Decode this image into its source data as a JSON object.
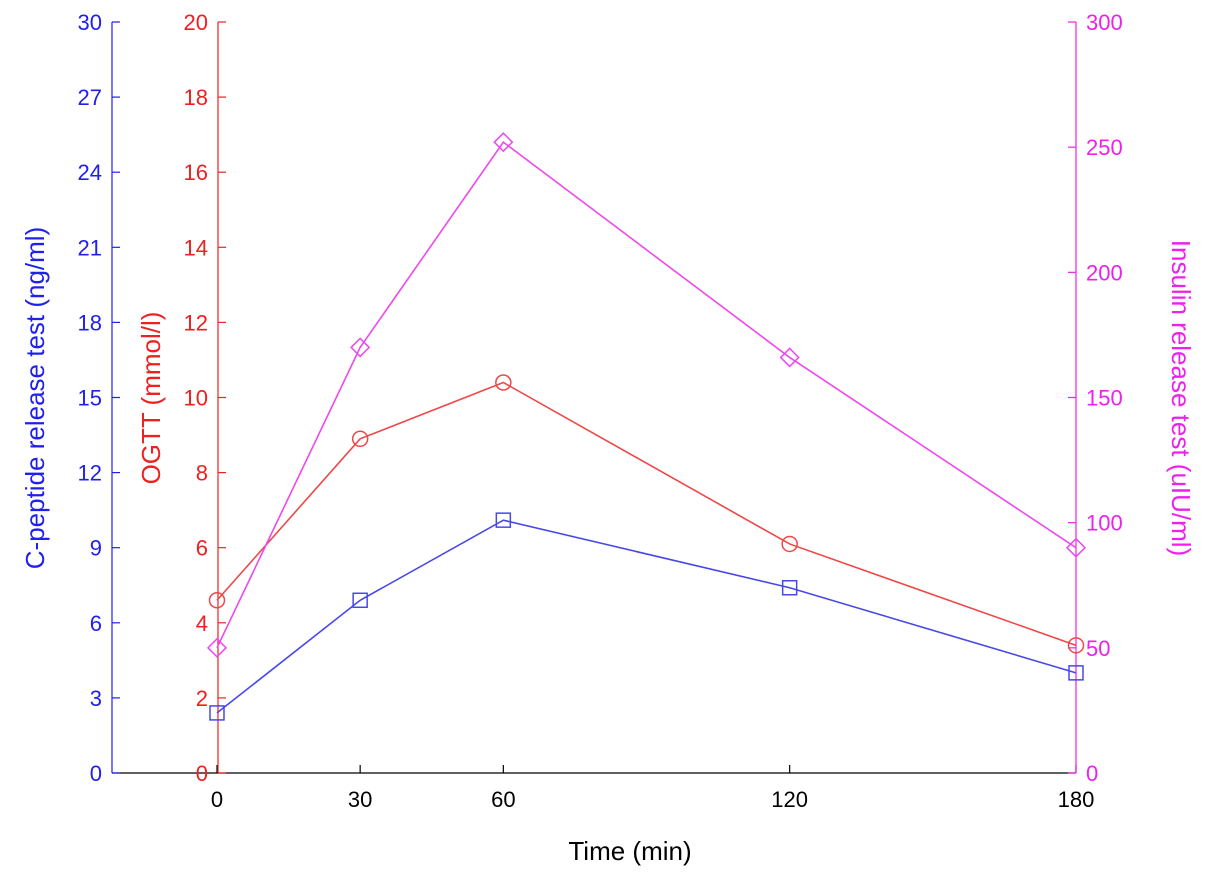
{
  "chart_data": {
    "type": "line",
    "x": [
      0,
      30,
      60,
      120,
      180
    ],
    "xlim": [
      -22,
      180
    ],
    "xticks": [
      "0",
      "30",
      "60",
      "120",
      "180"
    ],
    "xlabel": "Time (min)",
    "axes": {
      "cpeptide": {
        "label": "C-peptide release test (ng/ml)",
        "color": "#2020ee",
        "ylim": [
          0,
          30
        ],
        "ticks": [
          "0",
          "3",
          "6",
          "9",
          "12",
          "15",
          "18",
          "21",
          "24",
          "27",
          "30"
        ]
      },
      "ogtt": {
        "label": "OGTT (mmol/l)",
        "color": "#ee2020",
        "ylim": [
          0,
          20
        ],
        "ticks": [
          "0",
          "2",
          "4",
          "6",
          "8",
          "10",
          "12",
          "14",
          "16",
          "18",
          "20"
        ]
      },
      "insulin": {
        "label": "Insulin release test (uIU/ml)",
        "color": "#ee20ee",
        "ylim": [
          0,
          300
        ],
        "ticks": [
          "0",
          "50",
          "100",
          "150",
          "200",
          "250",
          "300"
        ]
      }
    },
    "series": [
      {
        "axis": "cpeptide",
        "marker": "square",
        "color": "#4848e8",
        "values": [
          2.4,
          6.9,
          10.1,
          7.4,
          4.0
        ]
      },
      {
        "axis": "ogtt",
        "marker": "circle",
        "color": "#ee4848",
        "values": [
          4.6,
          8.9,
          10.4,
          6.1,
          3.4
        ]
      },
      {
        "axis": "insulin",
        "marker": "diamond",
        "color": "#ee48ee",
        "values": [
          50,
          170,
          252,
          166,
          90
        ]
      }
    ]
  }
}
